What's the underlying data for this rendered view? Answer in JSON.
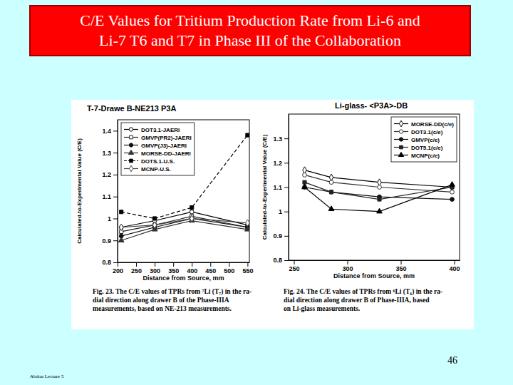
{
  "slide": {
    "title_lines": [
      "C/E Values for Tritium Production Rate from Li-6 and",
      "Li-7 T6 and T7 in Phase III of the Collaboration"
    ],
    "page_number": "46",
    "footer": "Abdou Lecture 5"
  },
  "chart_data": [
    {
      "type": "line",
      "title": "T-7-Drawe B-NE213 P3A",
      "x_label": "Distance from Source, mm",
      "y_label": "Calculated-to-Experimental Value (C/E)",
      "x": [
        210,
        300,
        400,
        550
      ],
      "xlim": [
        200,
        555
      ],
      "xticks": [
        200,
        250,
        300,
        350,
        400,
        450,
        500,
        550
      ],
      "ylim": [
        0.8,
        1.45
      ],
      "yticks": [
        0.8,
        0.9,
        1,
        1.1,
        1.2,
        1.3,
        1.4
      ],
      "legend": "upper-left",
      "series": [
        {
          "name": "DOT3.1-JAERI",
          "color": "#000000",
          "marker": "circle-open",
          "line_style": "solid",
          "values": [
            0.96,
            0.99,
            1.03,
            0.97
          ]
        },
        {
          "name": "GMVP(PR2)-JAERI",
          "color": "#222222",
          "marker": "square-open",
          "line_style": "solid",
          "values": [
            0.94,
            0.97,
            1.01,
            0.96
          ]
        },
        {
          "name": "GMVP(J3)-JAERI",
          "color": "#111111",
          "marker": "circle",
          "line_style": "solid",
          "values": [
            0.92,
            0.96,
            1.0,
            0.96
          ]
        },
        {
          "name": "MORSE-DD-JAERI",
          "color": "#333333",
          "marker": "triangle",
          "line_style": "solid",
          "values": [
            0.9,
            0.95,
            0.99,
            0.95
          ]
        },
        {
          "name": "DOTS.1-U.S.",
          "color": "#000000",
          "marker": "square",
          "line_style": "dashed",
          "values": [
            1.03,
            1.0,
            1.05,
            1.38
          ]
        },
        {
          "name": "MCNP-U.S.",
          "color": "#444444",
          "marker": "diamond-open",
          "line_style": "solid",
          "values": [
            0.96,
            0.97,
            1.0,
            0.98
          ]
        }
      ],
      "caption": [
        "Fig. 23. The C/E values of TPRs from ⁷Li (T₇) in the ra-",
        "dial direction along drawer B of the Phase-IIIA",
        "measurements, based on NE-213 measurements."
      ]
    },
    {
      "type": "line",
      "title": "Li-glass- <P3A>-DB",
      "x_label": "Distance from Source, mm",
      "y_label": "Calculated-to-Experimental Value (C/E)",
      "x": [
        260,
        285,
        330,
        398
      ],
      "xlim": [
        245,
        405
      ],
      "xticks": [
        250,
        300,
        350,
        400
      ],
      "ylim": [
        0.8,
        1.4
      ],
      "yticks": [
        0.8,
        0.9,
        1,
        1.1,
        1.2,
        1.3
      ],
      "legend": "upper-right",
      "series": [
        {
          "name": "MORSE-DD(c/e)",
          "color": "#000000",
          "marker": "diamond-open",
          "line_style": "solid",
          "values": [
            1.17,
            1.14,
            1.12,
            1.1
          ]
        },
        {
          "name": "DOT3.1(c/e)",
          "color": "#333333",
          "marker": "circle-open",
          "line_style": "solid",
          "values": [
            1.15,
            1.12,
            1.1,
            1.08
          ]
        },
        {
          "name": "GMVP(c/e)",
          "color": "#111111",
          "marker": "circle",
          "line_style": "solid",
          "values": [
            1.1,
            1.08,
            1.06,
            1.05
          ]
        },
        {
          "name": "DOT5.1(c/e)",
          "color": "#222222",
          "marker": "square",
          "line_style": "solid",
          "values": [
            1.12,
            1.08,
            1.05,
            1.1
          ]
        },
        {
          "name": "MCNP(c/e)",
          "color": "#000000",
          "marker": "triangle",
          "line_style": "solid",
          "values": [
            1.1,
            1.01,
            1.0,
            1.11
          ]
        }
      ],
      "caption": [
        "Fig. 24. The C/E values of TPRs from ⁶Li (T₆) in the ra-",
        "dial direction along drawer B of Phase-IIIA, based",
        "on Li-glass measurements."
      ]
    }
  ]
}
